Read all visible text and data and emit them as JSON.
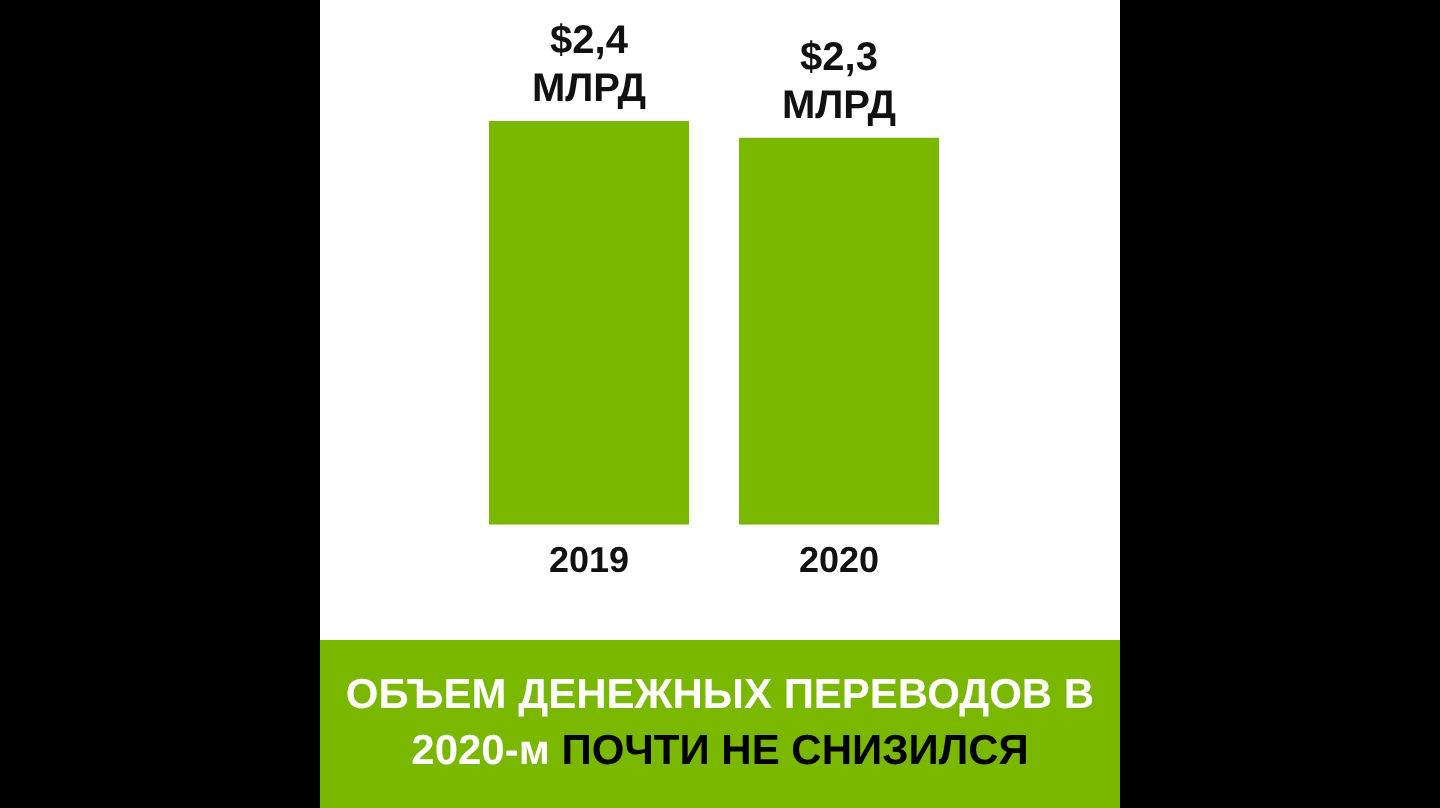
{
  "chart_data": {
    "type": "bar",
    "title": "ОБЪЕМ ДЕНЕЖНЫХ ПЕРЕВОДОВ В 2020-м",
    "subtitle": "ПОЧТИ НЕ СНИЗИЛСЯ",
    "categories": [
      "2019",
      "2020"
    ],
    "values": [
      2.4,
      2.3
    ],
    "value_labels": [
      "$2,4 МЛРД",
      "$2,3 МЛРД"
    ],
    "color": "#7ab800",
    "grid": false,
    "legend": false
  }
}
